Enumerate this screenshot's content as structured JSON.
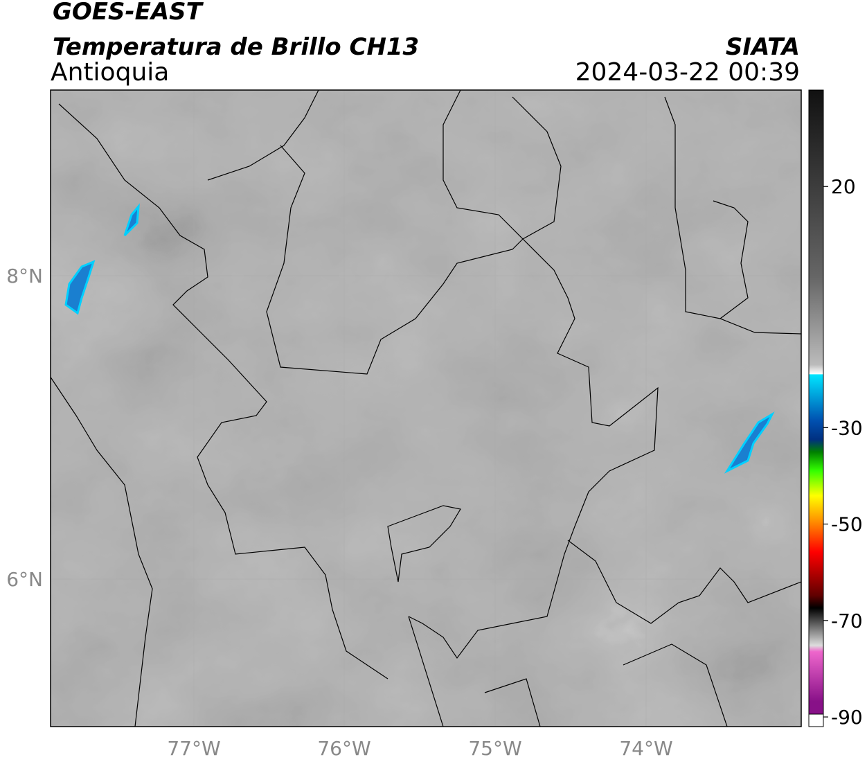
{
  "header": {
    "title": "GOES-EAST",
    "subtitle": "Temperatura de Brillo CH13",
    "region": "Antioquia",
    "source": "SIATA",
    "datetime": "2024-03-22 00:39"
  },
  "map": {
    "lat_labels": [
      "8°N",
      "6°N"
    ],
    "lon_labels": [
      "77°W",
      "76°W",
      "75°W",
      "74°W"
    ]
  },
  "colorbar": {
    "lim": [
      -92,
      40
    ],
    "ticks": [
      20,
      -30,
      -50,
      -70,
      -90
    ]
  }
}
